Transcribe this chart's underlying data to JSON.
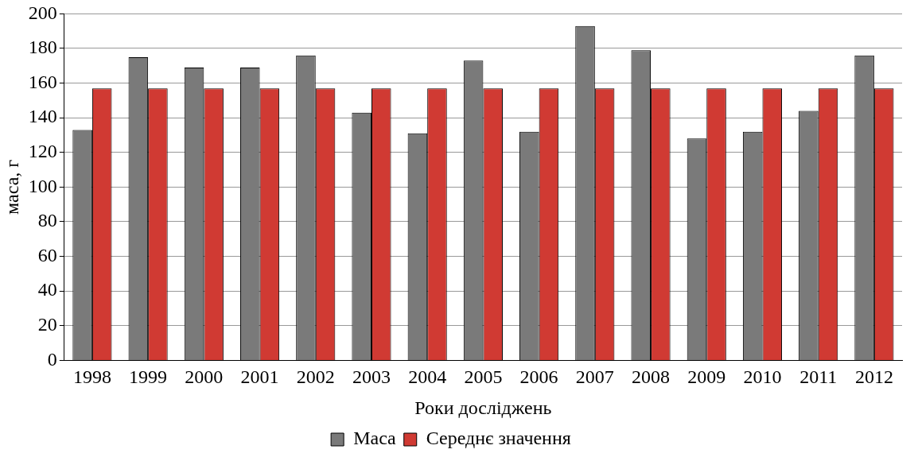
{
  "chart_data": {
    "type": "bar",
    "xlabel": "Роки досліджень",
    "ylabel": "маса, г",
    "categories": [
      "1998",
      "1999",
      "2000",
      "2001",
      "2002",
      "2003",
      "2004",
      "2005",
      "2006",
      "2007",
      "2008",
      "2009",
      "2010",
      "2011",
      "2012"
    ],
    "series": [
      {
        "name": "Маса",
        "color": "#7a7a7a",
        "values": [
          133,
          175,
          169,
          169,
          176,
          143,
          131,
          173,
          132,
          193,
          179,
          128,
          132,
          144,
          176
        ]
      },
      {
        "name": "Середнє значення",
        "color": "#d03a33",
        "values": [
          157,
          157,
          157,
          157,
          157,
          157,
          157,
          157,
          157,
          157,
          157,
          157,
          157,
          157,
          157
        ]
      }
    ],
    "ylim": [
      0,
      200
    ],
    "yticks": [
      0,
      20,
      40,
      60,
      80,
      100,
      120,
      140,
      160,
      180,
      200
    ],
    "grid": "y",
    "legend": "bottom"
  }
}
